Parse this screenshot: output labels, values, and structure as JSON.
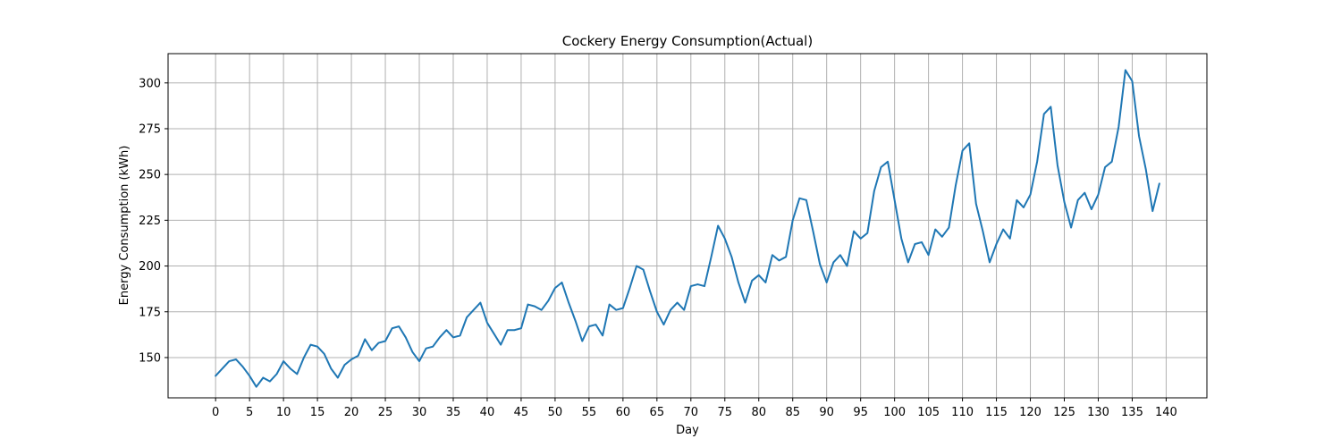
{
  "chart_data": {
    "type": "line",
    "title": "Cockery Energy Consumption(Actual)",
    "xlabel": "Day",
    "ylabel": "Energy Consumption (kWh)",
    "xlim": [
      -7,
      146
    ],
    "ylim": [
      128,
      316
    ],
    "xticks": [
      0,
      5,
      10,
      15,
      20,
      25,
      30,
      35,
      40,
      45,
      50,
      55,
      60,
      65,
      70,
      75,
      80,
      85,
      90,
      95,
      100,
      105,
      110,
      115,
      120,
      125,
      130,
      135,
      140
    ],
    "yticks": [
      150,
      175,
      200,
      225,
      250,
      275,
      300
    ],
    "grid": true,
    "series": [
      {
        "color": "#1f77b4",
        "x": [
          0,
          1,
          2,
          3,
          4,
          5,
          6,
          7,
          8,
          9,
          10,
          11,
          12,
          13,
          14,
          15,
          16,
          17,
          18,
          19,
          20,
          21,
          22,
          23,
          24,
          25,
          26,
          27,
          28,
          29,
          30,
          31,
          32,
          33,
          34,
          35,
          36,
          37,
          38,
          39,
          40,
          41,
          42,
          43,
          44,
          45,
          46,
          47,
          48,
          49,
          50,
          51,
          52,
          53,
          54,
          55,
          56,
          57,
          58,
          59,
          60,
          61,
          62,
          63,
          64,
          65,
          66,
          67,
          68,
          69,
          70,
          71,
          72,
          73,
          74,
          75,
          76,
          77,
          78,
          79,
          80,
          81,
          82,
          83,
          84,
          85,
          86,
          87,
          88,
          89,
          90,
          91,
          92,
          93,
          94,
          95,
          96,
          97,
          98,
          99,
          100,
          101,
          102,
          103,
          104,
          105,
          106,
          107,
          108,
          109,
          110,
          111,
          112,
          113,
          114,
          115,
          116,
          117,
          118,
          119,
          120,
          121,
          122,
          123,
          124,
          125,
          126,
          127,
          128,
          129,
          130,
          131,
          132,
          133,
          134,
          135,
          136,
          137,
          138,
          139
        ],
        "values": [
          140,
          144,
          148,
          149,
          145,
          140,
          134,
          139,
          137,
          141,
          148,
          144,
          141,
          150,
          157,
          156,
          152,
          144,
          139,
          146,
          149,
          151,
          160,
          154,
          158,
          159,
          166,
          167,
          161,
          153,
          148,
          155,
          156,
          161,
          165,
          161,
          162,
          172,
          176,
          180,
          169,
          163,
          157,
          165,
          165,
          166,
          179,
          178,
          176,
          181,
          188,
          191,
          180,
          170,
          159,
          167,
          168,
          162,
          179,
          176,
          177,
          188,
          200,
          198,
          186,
          175,
          168,
          176,
          180,
          176,
          189,
          190,
          189,
          205,
          222,
          215,
          205,
          191,
          180,
          192,
          195,
          191,
          206,
          203,
          205,
          225,
          237,
          236,
          219,
          201,
          191,
          202,
          206,
          200,
          219,
          215,
          218,
          241,
          254,
          257,
          236,
          215,
          202,
          212,
          213,
          206,
          220,
          216,
          221,
          244,
          263,
          267,
          234,
          219,
          202,
          212,
          220,
          215,
          236,
          232,
          239,
          257,
          283,
          287,
          255,
          235,
          221,
          236,
          240,
          231,
          239,
          254,
          257,
          276,
          307,
          301,
          271,
          253,
          230,
          245
        ]
      }
    ]
  }
}
